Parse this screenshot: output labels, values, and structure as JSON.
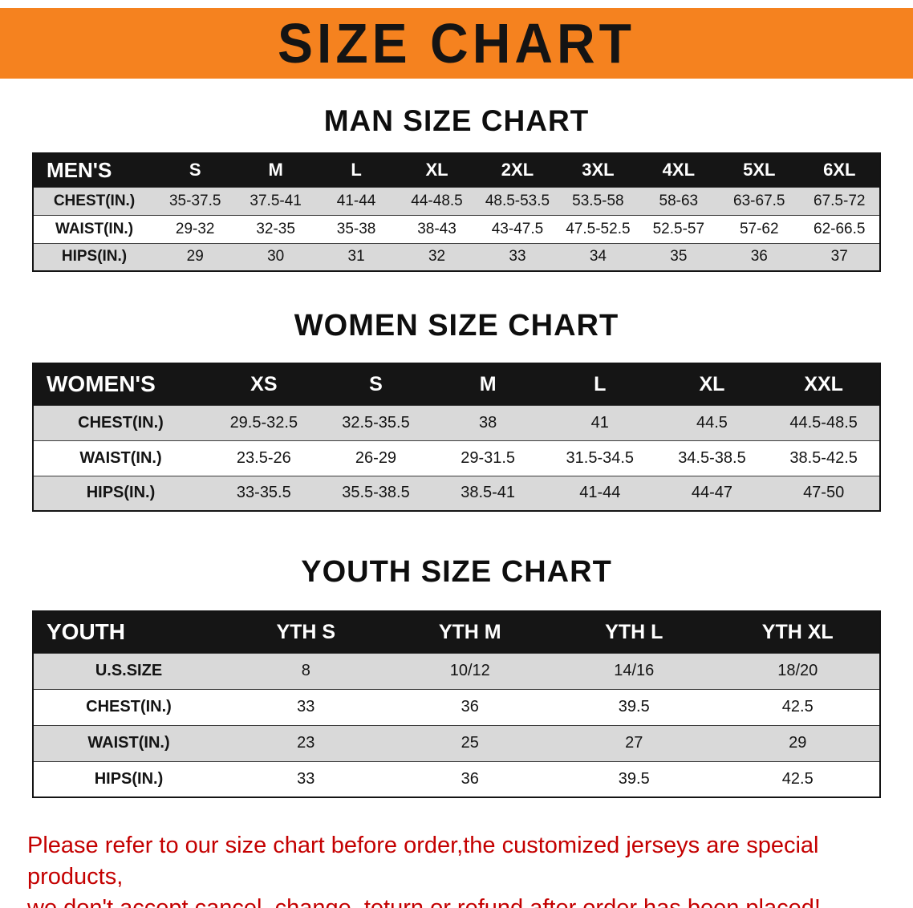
{
  "banner": {
    "title": "SIZE CHART"
  },
  "colors": {
    "banner_orange": "#f5821f",
    "table_header_black": "#151515",
    "stripe_grey": "#d9d9d9",
    "footer_red": "#c40000"
  },
  "sections": [
    {
      "key": "men",
      "heading": "MAN SIZE CHART",
      "table": {
        "label_header": "MEN'S",
        "sizes": [
          "S",
          "M",
          "L",
          "XL",
          "2XL",
          "3XL",
          "4XL",
          "5XL",
          "6XL"
        ],
        "rows": [
          {
            "label": "CHEST(IN.)",
            "values": [
              "35-37.5",
              "37.5-41",
              "41-44",
              "44-48.5",
              "48.5-53.5",
              "53.5-58",
              "58-63",
              "63-67.5",
              "67.5-72"
            ]
          },
          {
            "label": "WAIST(IN.)",
            "values": [
              "29-32",
              "32-35",
              "35-38",
              "38-43",
              "43-47.5",
              "47.5-52.5",
              "52.5-57",
              "57-62",
              "62-66.5"
            ]
          },
          {
            "label": "HIPS(IN.)",
            "values": [
              "29",
              "30",
              "31",
              "32",
              "33",
              "34",
              "35",
              "36",
              "37"
            ]
          }
        ]
      }
    },
    {
      "key": "women",
      "heading": "WOMEN SIZE CHART",
      "table": {
        "label_header": "WOMEN'S",
        "sizes": [
          "XS",
          "S",
          "M",
          "L",
          "XL",
          "XXL"
        ],
        "rows": [
          {
            "label": "CHEST(IN.)",
            "values": [
              "29.5-32.5",
              "32.5-35.5",
              "38",
              "41",
              "44.5",
              "44.5-48.5"
            ]
          },
          {
            "label": "WAIST(IN.)",
            "values": [
              "23.5-26",
              "26-29",
              "29-31.5",
              "31.5-34.5",
              "34.5-38.5",
              "38.5-42.5"
            ]
          },
          {
            "label": "HIPS(IN.)",
            "values": [
              "33-35.5",
              "35.5-38.5",
              "38.5-41",
              "41-44",
              "44-47",
              "47-50"
            ]
          }
        ]
      }
    },
    {
      "key": "youth",
      "heading": "YOUTH SIZE CHART",
      "table": {
        "label_header": "YOUTH",
        "sizes": [
          "YTH S",
          "YTH M",
          "YTH L",
          "YTH XL"
        ],
        "rows": [
          {
            "label": "U.S.SIZE",
            "values": [
              "8",
              "10/12",
              "14/16",
              "18/20"
            ]
          },
          {
            "label": "CHEST(IN.)",
            "values": [
              "33",
              "36",
              "39.5",
              "42.5"
            ]
          },
          {
            "label": "WAIST(IN.)",
            "values": [
              "23",
              "25",
              "27",
              "29"
            ]
          },
          {
            "label": "HIPS(IN.)",
            "values": [
              "33",
              "36",
              "39.5",
              "42.5"
            ]
          }
        ]
      }
    }
  ],
  "footer": {
    "line1": "Please refer to our size chart before order,the customized jerseys are special products,",
    "line2": "we don't accept cancel, change, teturn or refund after order has been placed!"
  }
}
